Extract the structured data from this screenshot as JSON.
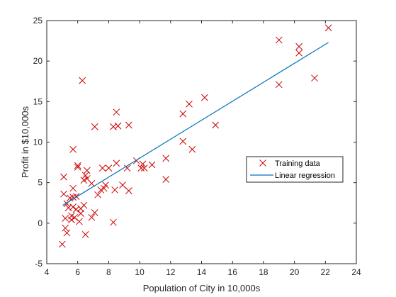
{
  "chart_data": {
    "type": "scatter",
    "title": "",
    "xlabel": "Population of City in 10,000s",
    "ylabel": "Profit in $10,000s",
    "xlim": [
      4,
      24
    ],
    "ylim": [
      -5,
      25
    ],
    "xticks": [
      4,
      6,
      8,
      10,
      12,
      14,
      16,
      18,
      20,
      22,
      24
    ],
    "yticks": [
      -5,
      0,
      5,
      10,
      15,
      20,
      25
    ],
    "grid": false,
    "legend_position": "right",
    "series": [
      {
        "name": "Training data",
        "marker": "x",
        "color": "#cc0000",
        "points": [
          [
            5.0,
            -2.6
          ],
          [
            5.1,
            5.7
          ],
          [
            5.1,
            3.6
          ],
          [
            5.2,
            0.6
          ],
          [
            5.2,
            -0.6
          ],
          [
            5.3,
            -1.2
          ],
          [
            5.3,
            2.4
          ],
          [
            5.4,
            1.9
          ],
          [
            5.5,
            3.1
          ],
          [
            5.6,
            0.9
          ],
          [
            5.6,
            0.4
          ],
          [
            5.7,
            3.2
          ],
          [
            5.7,
            4.3
          ],
          [
            5.7,
            2.0
          ],
          [
            5.7,
            9.1
          ],
          [
            5.8,
            0.7
          ],
          [
            5.9,
            3.3
          ],
          [
            5.9,
            1.7
          ],
          [
            6.0,
            7.1
          ],
          [
            6.0,
            6.9
          ],
          [
            6.1,
            0.2
          ],
          [
            6.2,
            1.8
          ],
          [
            6.2,
            1.2
          ],
          [
            6.3,
            17.6
          ],
          [
            6.4,
            2.2
          ],
          [
            6.4,
            5.3
          ],
          [
            6.5,
            5.9
          ],
          [
            6.5,
            -1.4
          ],
          [
            6.6,
            6.5
          ],
          [
            6.6,
            5.5
          ],
          [
            6.9,
            0.7
          ],
          [
            6.9,
            4.9
          ],
          [
            7.1,
            11.9
          ],
          [
            7.1,
            1.3
          ],
          [
            7.3,
            3.5
          ],
          [
            7.5,
            4.1
          ],
          [
            7.6,
            6.8
          ],
          [
            7.7,
            4.3
          ],
          [
            7.8,
            4.7
          ],
          [
            8.0,
            6.8
          ],
          [
            8.3,
            0.1
          ],
          [
            8.3,
            11.9
          ],
          [
            8.4,
            4.1
          ],
          [
            8.5,
            13.7
          ],
          [
            8.5,
            7.4
          ],
          [
            8.6,
            12.0
          ],
          [
            8.9,
            4.7
          ],
          [
            9.2,
            6.8
          ],
          [
            9.3,
            12.1
          ],
          [
            9.3,
            4.0
          ],
          [
            9.8,
            7.7
          ],
          [
            10.1,
            6.8
          ],
          [
            10.2,
            7.3
          ],
          [
            10.3,
            6.8
          ],
          [
            10.8,
            7.2
          ],
          [
            11.7,
            8.0
          ],
          [
            11.7,
            5.4
          ],
          [
            12.8,
            13.5
          ],
          [
            12.8,
            10.1
          ],
          [
            13.2,
            14.7
          ],
          [
            13.4,
            9.1
          ],
          [
            14.2,
            15.5
          ],
          [
            14.9,
            12.1
          ],
          [
            19.0,
            22.6
          ],
          [
            19.0,
            17.1
          ],
          [
            20.3,
            21.8
          ],
          [
            20.3,
            21.0
          ],
          [
            21.3,
            17.9
          ],
          [
            22.2,
            24.1
          ]
        ]
      },
      {
        "name": "Linear regression",
        "type": "line",
        "color": "#0072bd",
        "points": [
          [
            5.03,
            2.2
          ],
          [
            22.2,
            22.3
          ]
        ]
      }
    ]
  }
}
